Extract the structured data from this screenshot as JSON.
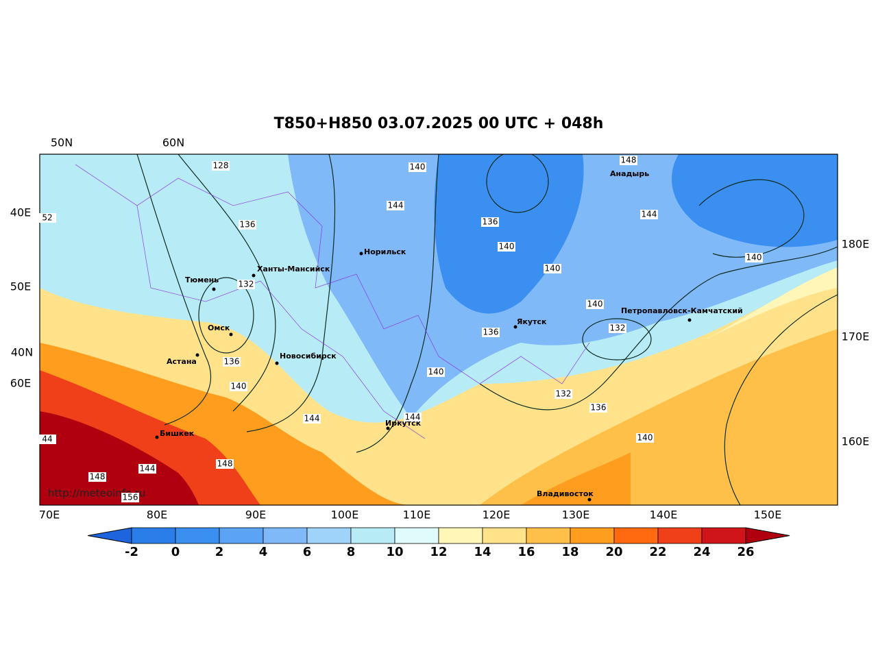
{
  "title": "T850+H850 03.07.2025 00 UTC + 048h",
  "credit": "http://meteoinfo.ru",
  "lat_lon_labels": {
    "top": [
      "50N",
      "60N"
    ],
    "left": [
      "40E",
      "50E",
      "40N",
      "60E"
    ],
    "right": [
      "180E",
      "170E",
      "160E"
    ],
    "bottom": [
      "70E",
      "80E",
      "90E",
      "100E",
      "110E",
      "120E",
      "130E",
      "140E",
      "150E"
    ]
  },
  "cities": [
    "Норильск",
    "Ханты-Мансийск",
    "Тюмень",
    "Омск",
    "Астана",
    "Новосибирск",
    "Бишкек",
    "Иркутск",
    "Якутск",
    "Анадырь",
    "Петропавловск-Камчатский",
    "Владивосток"
  ],
  "contour_labels": [
    128,
    136,
    132,
    136,
    140,
    144,
    148,
    144,
    148,
    156,
    44,
    52,
    140,
    144,
    136,
    140,
    140,
    140,
    136,
    140,
    144,
    132,
    136,
    140,
    132,
    148,
    144,
    140
  ],
  "colorbar": {
    "ticks": [
      -2,
      0,
      2,
      4,
      6,
      8,
      10,
      12,
      14,
      16,
      18,
      20,
      22,
      24,
      26
    ],
    "colors": [
      "#2b7de9",
      "#3a8ff0",
      "#5aa3f5",
      "#7fb9f7",
      "#9fd3f9",
      "#b7ecf7",
      "#e0fbfb",
      "#fff6b8",
      "#ffe28a",
      "#ffc04a",
      "#ff9d1e",
      "#ff6a10",
      "#f0401a",
      "#d0151a"
    ],
    "under_color": "#1e64dc",
    "over_color": "#b00010"
  }
}
